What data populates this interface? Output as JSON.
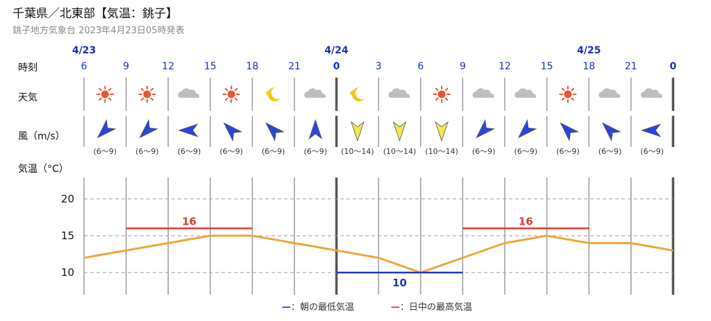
{
  "header": {
    "title": "千葉県／北東部【気温：銚子】",
    "issued": "銚子地方気象台 2023年4月23日05時発表"
  },
  "rows": {
    "time_label": "時刻",
    "weather_label": "天気",
    "wind_label": "風（m/s）",
    "temp_label": "気温（°C）"
  },
  "dates": [
    {
      "label": "4/23",
      "col": 0
    },
    {
      "label": "4/24",
      "col": 6
    },
    {
      "label": "4/25",
      "col": 12
    }
  ],
  "hours": [
    "6",
    "9",
    "12",
    "15",
    "18",
    "21",
    "0",
    "3",
    "6",
    "9",
    "12",
    "15",
    "18",
    "21",
    "0"
  ],
  "forecast": [
    {
      "weather": "sun-icon",
      "wind_dir": "NE",
      "wind_speed": "(6～9)",
      "wind_color": "#2a44e0"
    },
    {
      "weather": "sun-icon",
      "wind_dir": "NE",
      "wind_speed": "(6～9)",
      "wind_color": "#2a44e0"
    },
    {
      "weather": "cloud-icon",
      "wind_dir": "E",
      "wind_speed": "(6～9)",
      "wind_color": "#2a44e0"
    },
    {
      "weather": "sun-icon",
      "wind_dir": "SE",
      "wind_speed": "(6～9)",
      "wind_color": "#2a44e0"
    },
    {
      "weather": "moon-icon",
      "wind_dir": "SE",
      "wind_speed": "(6～9)",
      "wind_color": "#2a44e0"
    },
    {
      "weather": "cloud-icon",
      "wind_dir": "S",
      "wind_speed": "(6～9)",
      "wind_color": "#2a44e0"
    },
    {
      "weather": "moon-icon",
      "wind_dir": "N",
      "wind_speed": "(10～14)",
      "wind_color": "#f2e94e"
    },
    {
      "weather": "cloud-icon",
      "wind_dir": "N",
      "wind_speed": "(10～14)",
      "wind_color": "#f2e94e"
    },
    {
      "weather": "sun-icon",
      "wind_dir": "N",
      "wind_speed": "(10～14)",
      "wind_color": "#f2e94e"
    },
    {
      "weather": "cloud-icon",
      "wind_dir": "NE",
      "wind_speed": "(6～9)",
      "wind_color": "#2a44e0"
    },
    {
      "weather": "cloud-icon",
      "wind_dir": "NE",
      "wind_speed": "(6～9)",
      "wind_color": "#2a44e0"
    },
    {
      "weather": "sun-icon",
      "wind_dir": "SE",
      "wind_speed": "(6～9)",
      "wind_color": "#2a44e0"
    },
    {
      "weather": "cloud-icon",
      "wind_dir": "SE",
      "wind_speed": "(6～9)",
      "wind_color": "#2a44e0"
    },
    {
      "weather": "cloud-icon",
      "wind_dir": "E",
      "wind_speed": "(6～9)",
      "wind_color": "#2a44e0"
    }
  ],
  "chart_data": {
    "type": "line",
    "x": [
      "6",
      "9",
      "12",
      "15",
      "18",
      "21",
      "0",
      "3",
      "6",
      "9",
      "12",
      "15",
      "18",
      "21",
      "0"
    ],
    "series": [
      {
        "values": [
          12,
          13,
          14,
          15,
          15,
          14,
          13,
          12,
          10,
          12,
          14,
          15,
          14,
          14,
          13
        ]
      }
    ],
    "yticks": [
      "20",
      "15",
      "10"
    ],
    "ylim": [
      7,
      23
    ],
    "grid": true,
    "max_bars": [
      {
        "label": "16",
        "value": 16,
        "from": 1,
        "to": 4
      },
      {
        "label": "16",
        "value": 16,
        "from": 9,
        "to": 12
      }
    ],
    "min_bars": [
      {
        "label": "10",
        "value": 10,
        "from": 6,
        "to": 9
      }
    ]
  },
  "legend": {
    "min_mark": "—",
    "min_text": "：朝の最低気温",
    "max_mark": "—",
    "max_text": "：日中の最高気温"
  },
  "colors": {
    "temp_line": "#f0a53a",
    "max_bar": "#e0392e",
    "min_bar": "#1f36c6",
    "date_text": "#1630b8",
    "sun": "#e8552e",
    "moon": "#f2c71a",
    "cloud": "#bdbdbd",
    "grid": "#9a9a9a"
  }
}
